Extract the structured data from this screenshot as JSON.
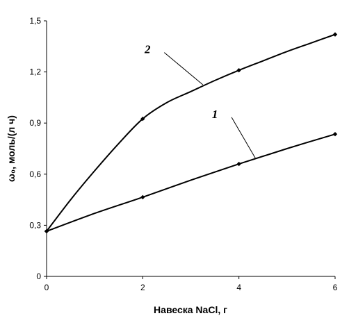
{
  "chart_data": {
    "type": "line",
    "title": "",
    "xlabel": "Навеска NaCl, г",
    "ylabel": "ω₀, моль/(л ч)",
    "xlim": [
      0,
      6
    ],
    "ylim": [
      0,
      1.5
    ],
    "x_ticks": [
      0,
      2,
      4,
      6
    ],
    "x_tick_labels": [
      "0",
      "2",
      "4",
      "6"
    ],
    "y_ticks": [
      0,
      0.3,
      0.6,
      0.9,
      1.2,
      1.5
    ],
    "y_tick_labels": [
      "0",
      "0,3",
      "0,6",
      "0,9",
      "1,2",
      "1,5"
    ],
    "grid": false,
    "legend": "none",
    "series": [
      {
        "name": "1",
        "x": [
          0,
          2,
          4,
          6
        ],
        "values": [
          0.265,
          0.465,
          0.66,
          0.835
        ],
        "smooth_x": [
          0,
          1,
          2,
          3,
          4,
          5,
          6
        ],
        "smooth_y": [
          0.265,
          0.37,
          0.465,
          0.565,
          0.66,
          0.75,
          0.835
        ],
        "label_at": [
          3.5,
          0.93
        ],
        "leader_to": [
          4.35,
          0.69
        ]
      },
      {
        "name": "2",
        "x": [
          0,
          2,
          4,
          6
        ],
        "values": [
          0.265,
          0.925,
          1.21,
          1.42
        ],
        "smooth_x": [
          0,
          0.5,
          1,
          1.5,
          2,
          2.5,
          3,
          3.5,
          4,
          4.5,
          5,
          5.5,
          6
        ],
        "smooth_y": [
          0.265,
          0.45,
          0.62,
          0.78,
          0.925,
          1.02,
          1.085,
          1.15,
          1.21,
          1.265,
          1.32,
          1.37,
          1.42
        ],
        "label_at": [
          2.1,
          1.31
        ],
        "leader_to": [
          3.25,
          1.125
        ]
      }
    ],
    "color": "#000000"
  }
}
